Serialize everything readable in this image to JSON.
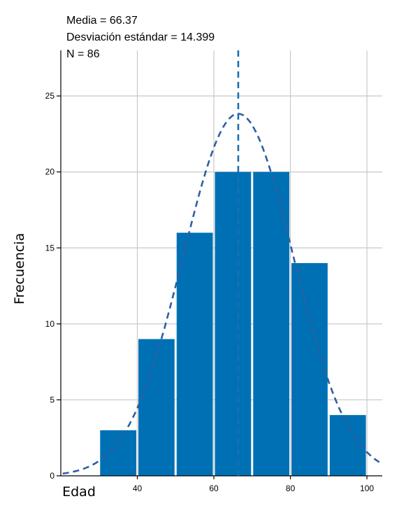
{
  "stats": {
    "mean_line": "Media = 66.37",
    "sd_line": "Desviación estándar = 14.399",
    "n_line": "N = 86"
  },
  "chart_data": {
    "type": "bar",
    "subtype": "histogram",
    "xlabel": "Edad",
    "ylabel": "Frecuencia",
    "xlim": [
      20,
      104
    ],
    "ylim": [
      0,
      28
    ],
    "x_ticks": [
      40,
      60,
      80,
      100
    ],
    "y_ticks": [
      0,
      5,
      10,
      15,
      20,
      25
    ],
    "bins": [
      {
        "start": 30,
        "end": 40,
        "value": 3
      },
      {
        "start": 40,
        "end": 50,
        "value": 9
      },
      {
        "start": 50,
        "end": 60,
        "value": 16
      },
      {
        "start": 60,
        "end": 70,
        "value": 20
      },
      {
        "start": 70,
        "end": 80,
        "value": 20
      },
      {
        "start": 80,
        "end": 90,
        "value": 14
      },
      {
        "start": 90,
        "end": 100,
        "value": 4
      }
    ],
    "normal_curve": {
      "mean": 66.37,
      "sd": 14.399,
      "n": 86,
      "bin_width": 10
    },
    "mean_line_x": 66.37,
    "grid": true,
    "colors": {
      "bar": "#0070b5",
      "curve": "#2e5fa3",
      "mean_line": "#1a6fb0",
      "grid": "#c8c8c8"
    }
  }
}
